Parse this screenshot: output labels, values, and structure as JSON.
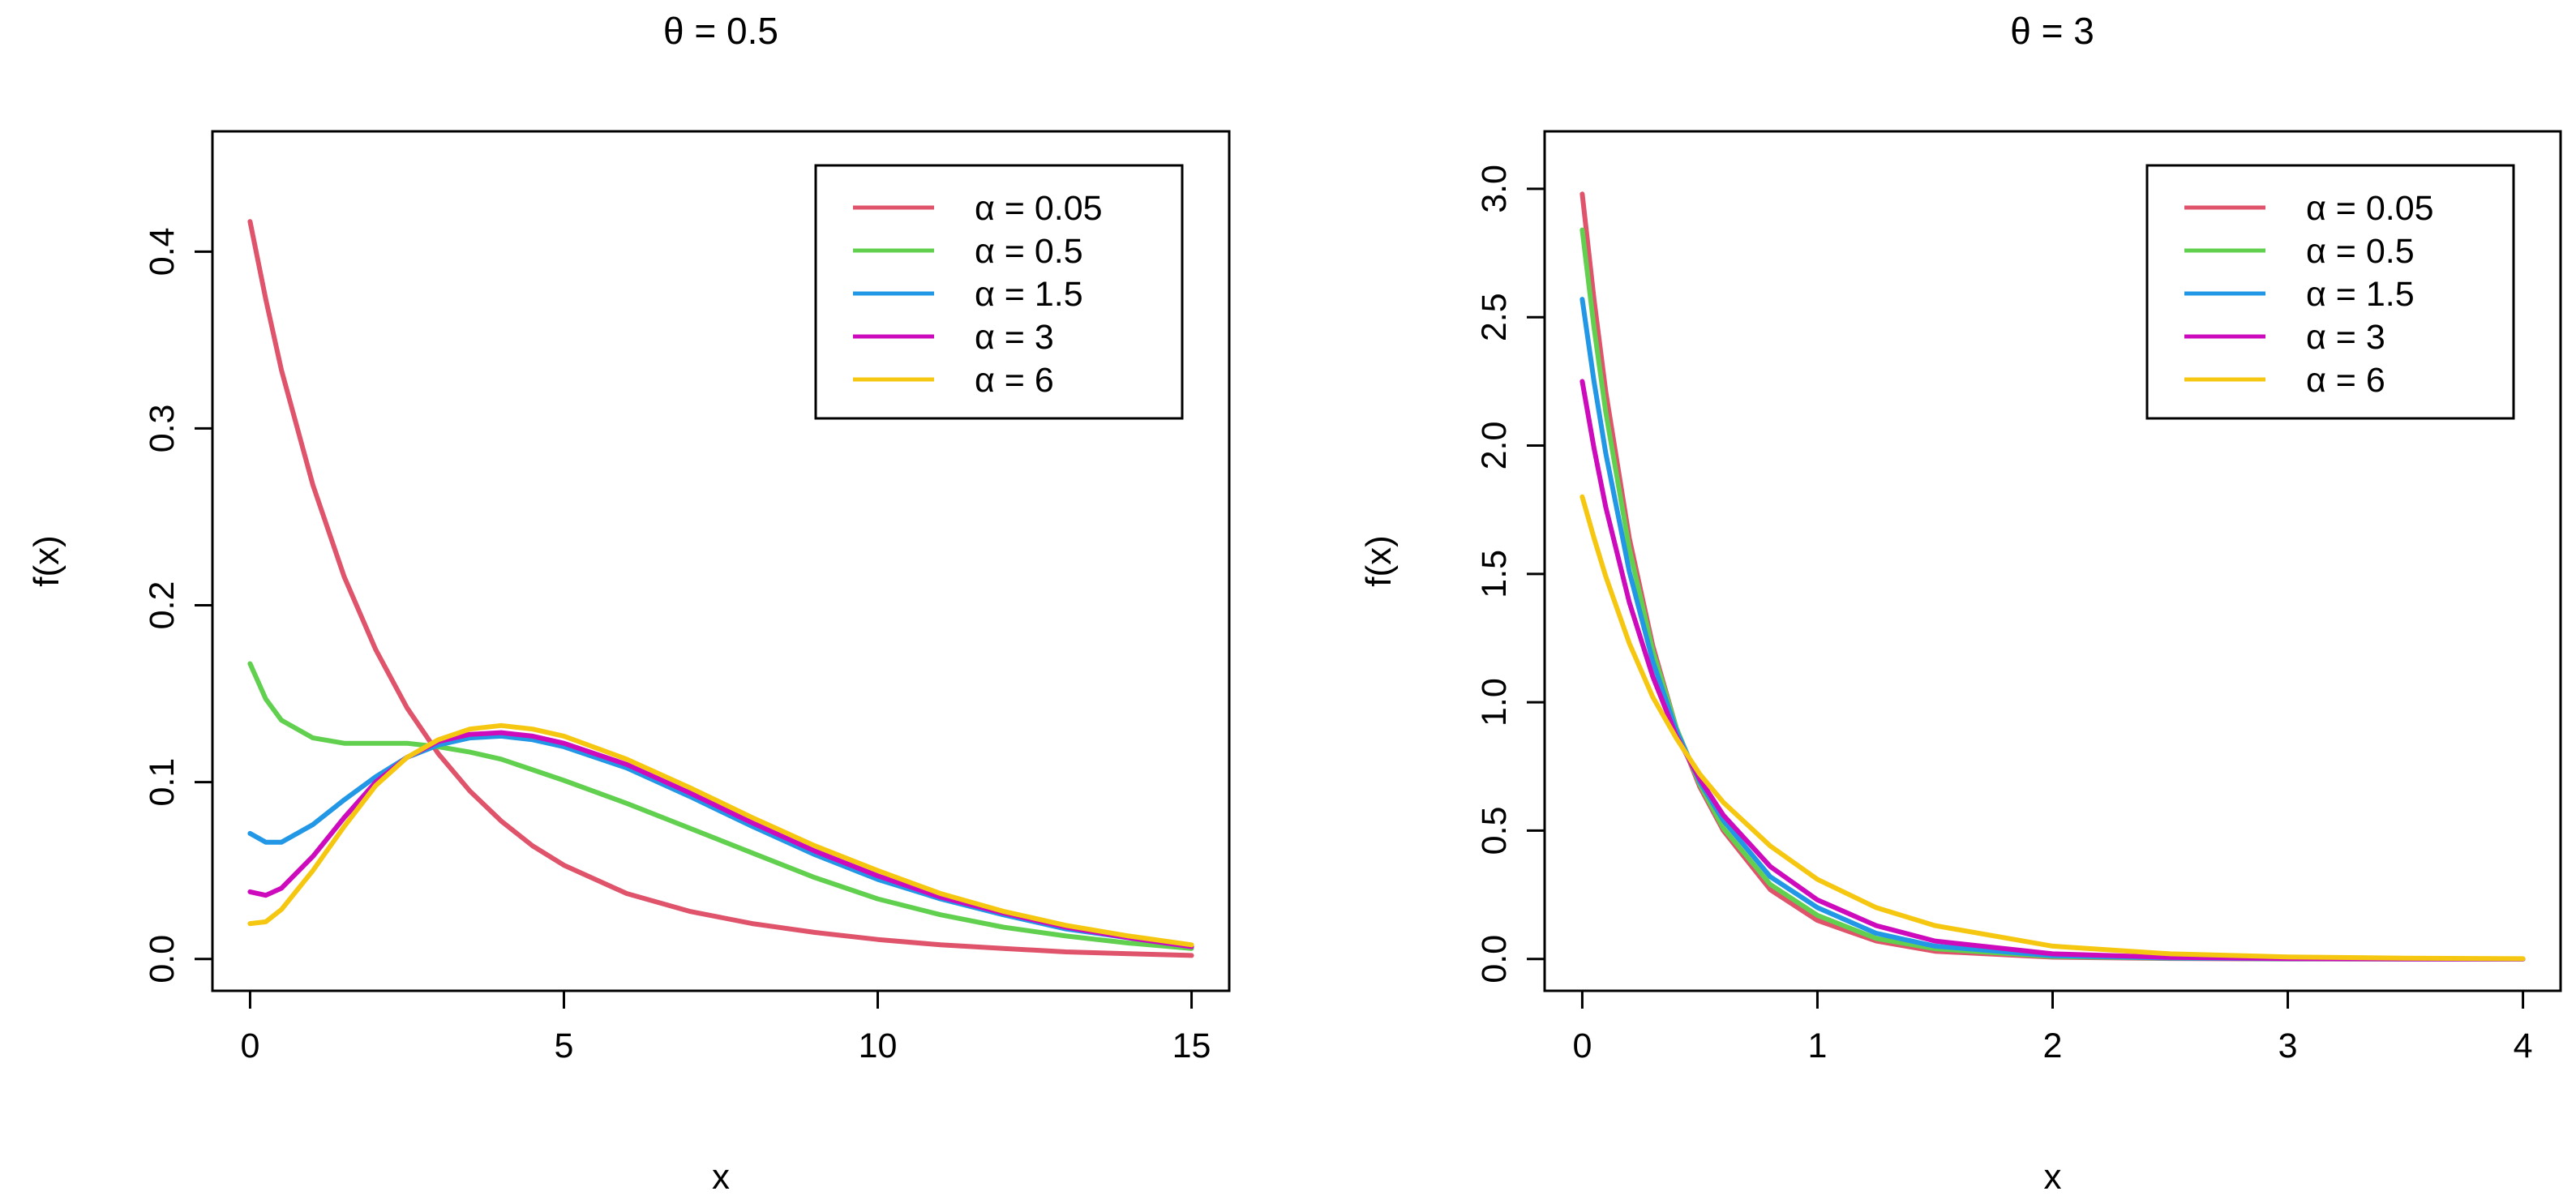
{
  "chart_data": [
    {
      "type": "line",
      "title": "θ = 0.5",
      "xlabel": "x",
      "ylabel": "f(x)",
      "xlim": [
        0,
        15
      ],
      "ylim": [
        0,
        0.45
      ],
      "x_ticks": [
        0,
        5,
        10,
        15
      ],
      "x_tick_labels": [
        "0",
        "5",
        "10",
        "15"
      ],
      "y_ticks": [
        0,
        0.1,
        0.2,
        0.3,
        0.4
      ],
      "y_tick_labels": [
        "0.0",
        "0.1",
        "0.2",
        "0.3",
        "0.4"
      ],
      "legend_position": "top-right",
      "x": [
        0,
        0.25,
        0.5,
        1,
        1.5,
        2,
        2.5,
        3,
        3.5,
        4,
        4.5,
        5,
        6,
        7,
        8,
        9,
        10,
        11,
        12,
        13,
        14,
        15
      ],
      "series": [
        {
          "name": "α = 0.05",
          "color": "#DF536B",
          "values": [
            0.417,
            0.373,
            0.333,
            0.268,
            0.216,
            0.175,
            0.142,
            0.116,
            0.095,
            0.078,
            0.064,
            0.053,
            0.037,
            0.027,
            0.02,
            0.015,
            0.011,
            0.008,
            0.006,
            0.004,
            0.003,
            0.002
          ]
        },
        {
          "name": "α = 0.5",
          "color": "#61D04F",
          "values": [
            0.167,
            0.147,
            0.135,
            0.125,
            0.122,
            0.122,
            0.122,
            0.12,
            0.117,
            0.113,
            0.107,
            0.101,
            0.088,
            0.074,
            0.06,
            0.046,
            0.034,
            0.025,
            0.018,
            0.013,
            0.009,
            0.006
          ]
        },
        {
          "name": "α = 1.5",
          "color": "#2297E6",
          "values": [
            0.071,
            0.066,
            0.066,
            0.076,
            0.09,
            0.103,
            0.114,
            0.121,
            0.125,
            0.126,
            0.124,
            0.12,
            0.108,
            0.092,
            0.075,
            0.059,
            0.045,
            0.034,
            0.025,
            0.017,
            0.012,
            0.007
          ]
        },
        {
          "name": "α = 3",
          "color": "#CD0BBC",
          "values": [
            0.038,
            0.036,
            0.04,
            0.058,
            0.08,
            0.1,
            0.114,
            0.123,
            0.127,
            0.128,
            0.126,
            0.122,
            0.11,
            0.094,
            0.077,
            0.061,
            0.047,
            0.035,
            0.026,
            0.018,
            0.012,
            0.007
          ]
        },
        {
          "name": "α = 6",
          "color": "#F5C710",
          "values": [
            0.02,
            0.021,
            0.028,
            0.05,
            0.075,
            0.098,
            0.114,
            0.124,
            0.13,
            0.132,
            0.13,
            0.126,
            0.113,
            0.097,
            0.08,
            0.064,
            0.05,
            0.037,
            0.027,
            0.019,
            0.013,
            0.008
          ]
        }
      ]
    },
    {
      "type": "line",
      "title": "θ = 3",
      "xlabel": "x",
      "ylabel": "f(x)",
      "xlim": [
        0,
        4
      ],
      "ylim": [
        0,
        3.1
      ],
      "x_ticks": [
        0,
        1,
        2,
        3,
        4
      ],
      "x_tick_labels": [
        "0",
        "1",
        "2",
        "3",
        "4"
      ],
      "y_ticks": [
        0,
        0.5,
        1.0,
        1.5,
        2.0,
        2.5,
        3.0
      ],
      "y_tick_labels": [
        "0.0",
        "0.5",
        "1.0",
        "1.5",
        "2.0",
        "2.5",
        "3.0"
      ],
      "legend_position": "top-right",
      "x": [
        0,
        0.05,
        0.1,
        0.2,
        0.3,
        0.4,
        0.5,
        0.6,
        0.8,
        1.0,
        1.25,
        1.5,
        2.0,
        2.5,
        3.0,
        3.5,
        4.0
      ],
      "series": [
        {
          "name": "α = 0.05",
          "color": "#DF536B",
          "values": [
            2.98,
            2.57,
            2.21,
            1.64,
            1.22,
            0.9,
            0.67,
            0.5,
            0.27,
            0.15,
            0.07,
            0.03,
            0.007,
            0.002,
            0.0,
            0.0,
            0.0
          ]
        },
        {
          "name": "α = 0.5",
          "color": "#61D04F",
          "values": [
            2.84,
            2.46,
            2.13,
            1.6,
            1.2,
            0.9,
            0.68,
            0.51,
            0.29,
            0.17,
            0.08,
            0.04,
            0.01,
            0.003,
            0.001,
            0.0,
            0.0
          ]
        },
        {
          "name": "α = 1.5",
          "color": "#2297E6",
          "values": [
            2.57,
            2.25,
            1.97,
            1.51,
            1.16,
            0.89,
            0.69,
            0.54,
            0.32,
            0.2,
            0.1,
            0.05,
            0.013,
            0.004,
            0.001,
            0.0,
            0.0
          ]
        },
        {
          "name": "α = 3",
          "color": "#CD0BBC",
          "values": [
            2.25,
            1.99,
            1.76,
            1.39,
            1.1,
            0.87,
            0.7,
            0.56,
            0.36,
            0.23,
            0.13,
            0.07,
            0.02,
            0.006,
            0.002,
            0.0,
            0.0
          ]
        },
        {
          "name": "α = 6",
          "color": "#F5C710",
          "values": [
            1.8,
            1.64,
            1.49,
            1.23,
            1.02,
            0.86,
            0.72,
            0.61,
            0.44,
            0.31,
            0.2,
            0.13,
            0.05,
            0.02,
            0.008,
            0.003,
            0.001
          ]
        }
      ]
    }
  ]
}
